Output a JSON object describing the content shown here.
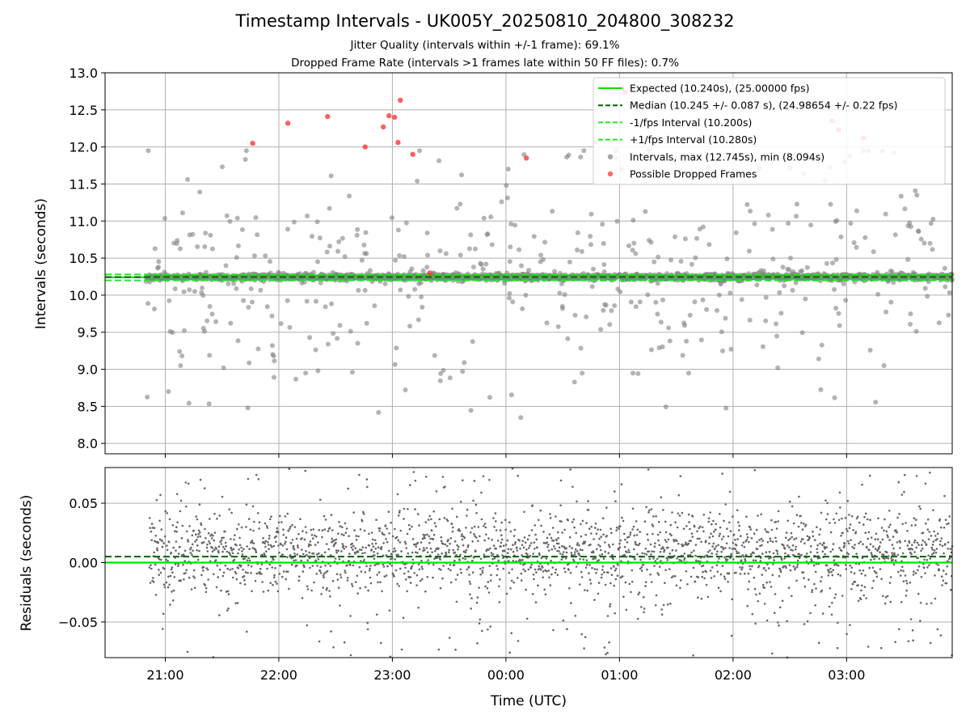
{
  "chart_data": {
    "title": "Timestamp Intervals - UK005Y_20250810_204800_308232",
    "subtitle_1": "Jitter Quality (intervals within +/-1 frame): 69.1%",
    "subtitle_2": "Dropped Frame Rate (intervals >1 frames late within 50 FF files): 0.7%",
    "xlabel": "Time (UTC)",
    "x_ticks": [
      "21:00",
      "22:00",
      "23:00",
      "00:00",
      "01:00",
      "02:00",
      "03:00"
    ],
    "x_range_hours": [
      20.47,
      27.93
    ],
    "colors": {
      "expected": "#00e600",
      "median": "#006400",
      "intervals": "#808080",
      "dropped": "#ff2a2a"
    },
    "top": {
      "type": "scatter",
      "ylabel": "Intervals (seconds)",
      "ylim": [
        7.86,
        13.0
      ],
      "y_ticks": [
        "8.0",
        "8.5",
        "9.0",
        "9.5",
        "10.0",
        "10.5",
        "11.0",
        "11.5",
        "12.0",
        "12.5",
        "13.0"
      ],
      "expected": 10.24,
      "median": 10.245,
      "minus_interval": 10.2,
      "plus_interval": 10.28,
      "legend_position": "top-right",
      "legend": [
        "Expected (10.240s), (25.00000 fps)",
        "Median (10.245 +/- 0.087 s), (24.98654 +/- 0.22 fps)",
        "-1/fps Interval (10.200s)",
        "+1/fps Interval (10.280s)",
        "Intervals, max (12.745s), min (8.094s)",
        "Possible Dropped Frames"
      ],
      "interval_count": 2400,
      "dropped_frames": [
        [
          21.77,
          12.05
        ],
        [
          22.08,
          12.32
        ],
        [
          22.43,
          12.41
        ],
        [
          22.76,
          12.0
        ],
        [
          22.92,
          12.27
        ],
        [
          22.97,
          12.42
        ],
        [
          23.02,
          12.4
        ],
        [
          23.05,
          12.06
        ],
        [
          23.07,
          12.63
        ],
        [
          23.18,
          11.9
        ],
        [
          23.33,
          10.3
        ],
        [
          24.18,
          11.85
        ],
        [
          25.05,
          12.74
        ],
        [
          26.87,
          12.35
        ],
        [
          26.93,
          12.23
        ],
        [
          27.15,
          12.12
        ]
      ]
    },
    "bottom": {
      "type": "scatter",
      "ylabel": "Residuals (seconds)",
      "ylim": [
        -0.08,
        0.08
      ],
      "y_ticks": [
        "−0.05",
        "0.00",
        "0.05"
      ],
      "expected": 0.0,
      "median": 0.005
    }
  }
}
